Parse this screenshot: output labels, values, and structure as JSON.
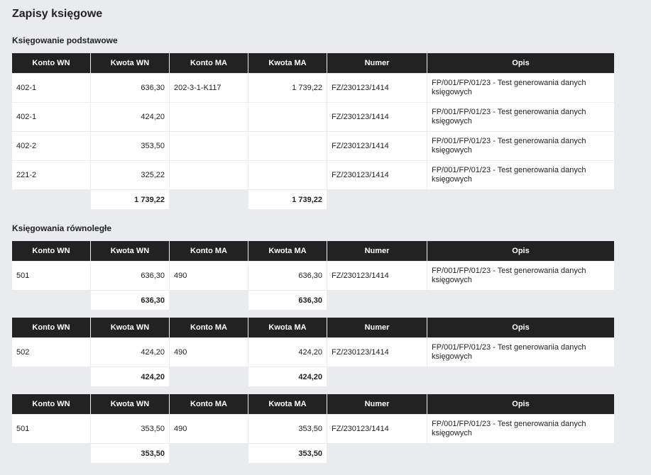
{
  "title": "Zapisy księgowe",
  "sections": [
    {
      "title": "Księgowanie podstawowe",
      "tables": [
        {
          "headers": [
            "Konto WN",
            "Kwota WN",
            "Konto MA",
            "Kwota MA",
            "Numer",
            "Opis"
          ],
          "rows": [
            [
              "402-1",
              "636,30",
              "202-3-1-K117",
              "1 739,22",
              "FZ/230123/1414",
              "FP/001/FP/01/23 - Test generowania danych księgowych"
            ],
            [
              "402-1",
              "424,20",
              null,
              null,
              "FZ/230123/1414",
              "FP/001/FP/01/23 - Test generowania danych księgowych"
            ],
            [
              "402-2",
              "353,50",
              null,
              null,
              "FZ/230123/1414",
              "FP/001/FP/01/23 - Test generowania danych księgowych"
            ],
            [
              "221-2",
              "325,22",
              null,
              null,
              "FZ/230123/1414",
              "FP/001/FP/01/23 - Test generowania danych księgowych"
            ]
          ],
          "totals": [
            "1 739,22",
            "1 739,22"
          ]
        }
      ]
    },
    {
      "title": "Księgowania równoległe",
      "tables": [
        {
          "headers": [
            "Konto WN",
            "Kwota WN",
            "Konto MA",
            "Kwota MA",
            "Numer",
            "Opis"
          ],
          "rows": [
            [
              "501",
              "636,30",
              "490",
              "636,30",
              "FZ/230123/1414",
              "FP/001/FP/01/23 - Test generowania danych księgowych"
            ]
          ],
          "totals": [
            "636,30",
            "636,30"
          ]
        },
        {
          "headers": [
            "Konto WN",
            "Kwota WN",
            "Konto MA",
            "Kwota MA",
            "Numer",
            "Opis"
          ],
          "rows": [
            [
              "502",
              "424,20",
              "490",
              "424,20",
              "FZ/230123/1414",
              "FP/001/FP/01/23 - Test generowania danych księgowych"
            ]
          ],
          "totals": [
            "424,20",
            "424,20"
          ]
        },
        {
          "headers": [
            "Konto WN",
            "Kwota WN",
            "Konto MA",
            "Kwota MA",
            "Numer",
            "Opis"
          ],
          "rows": [
            [
              "501",
              "353,50",
              "490",
              "353,50",
              "FZ/230123/1414",
              "FP/001/FP/01/23 - Test generowania danych księgowych"
            ]
          ],
          "totals": [
            "353,50",
            "353,50"
          ]
        }
      ]
    }
  ]
}
